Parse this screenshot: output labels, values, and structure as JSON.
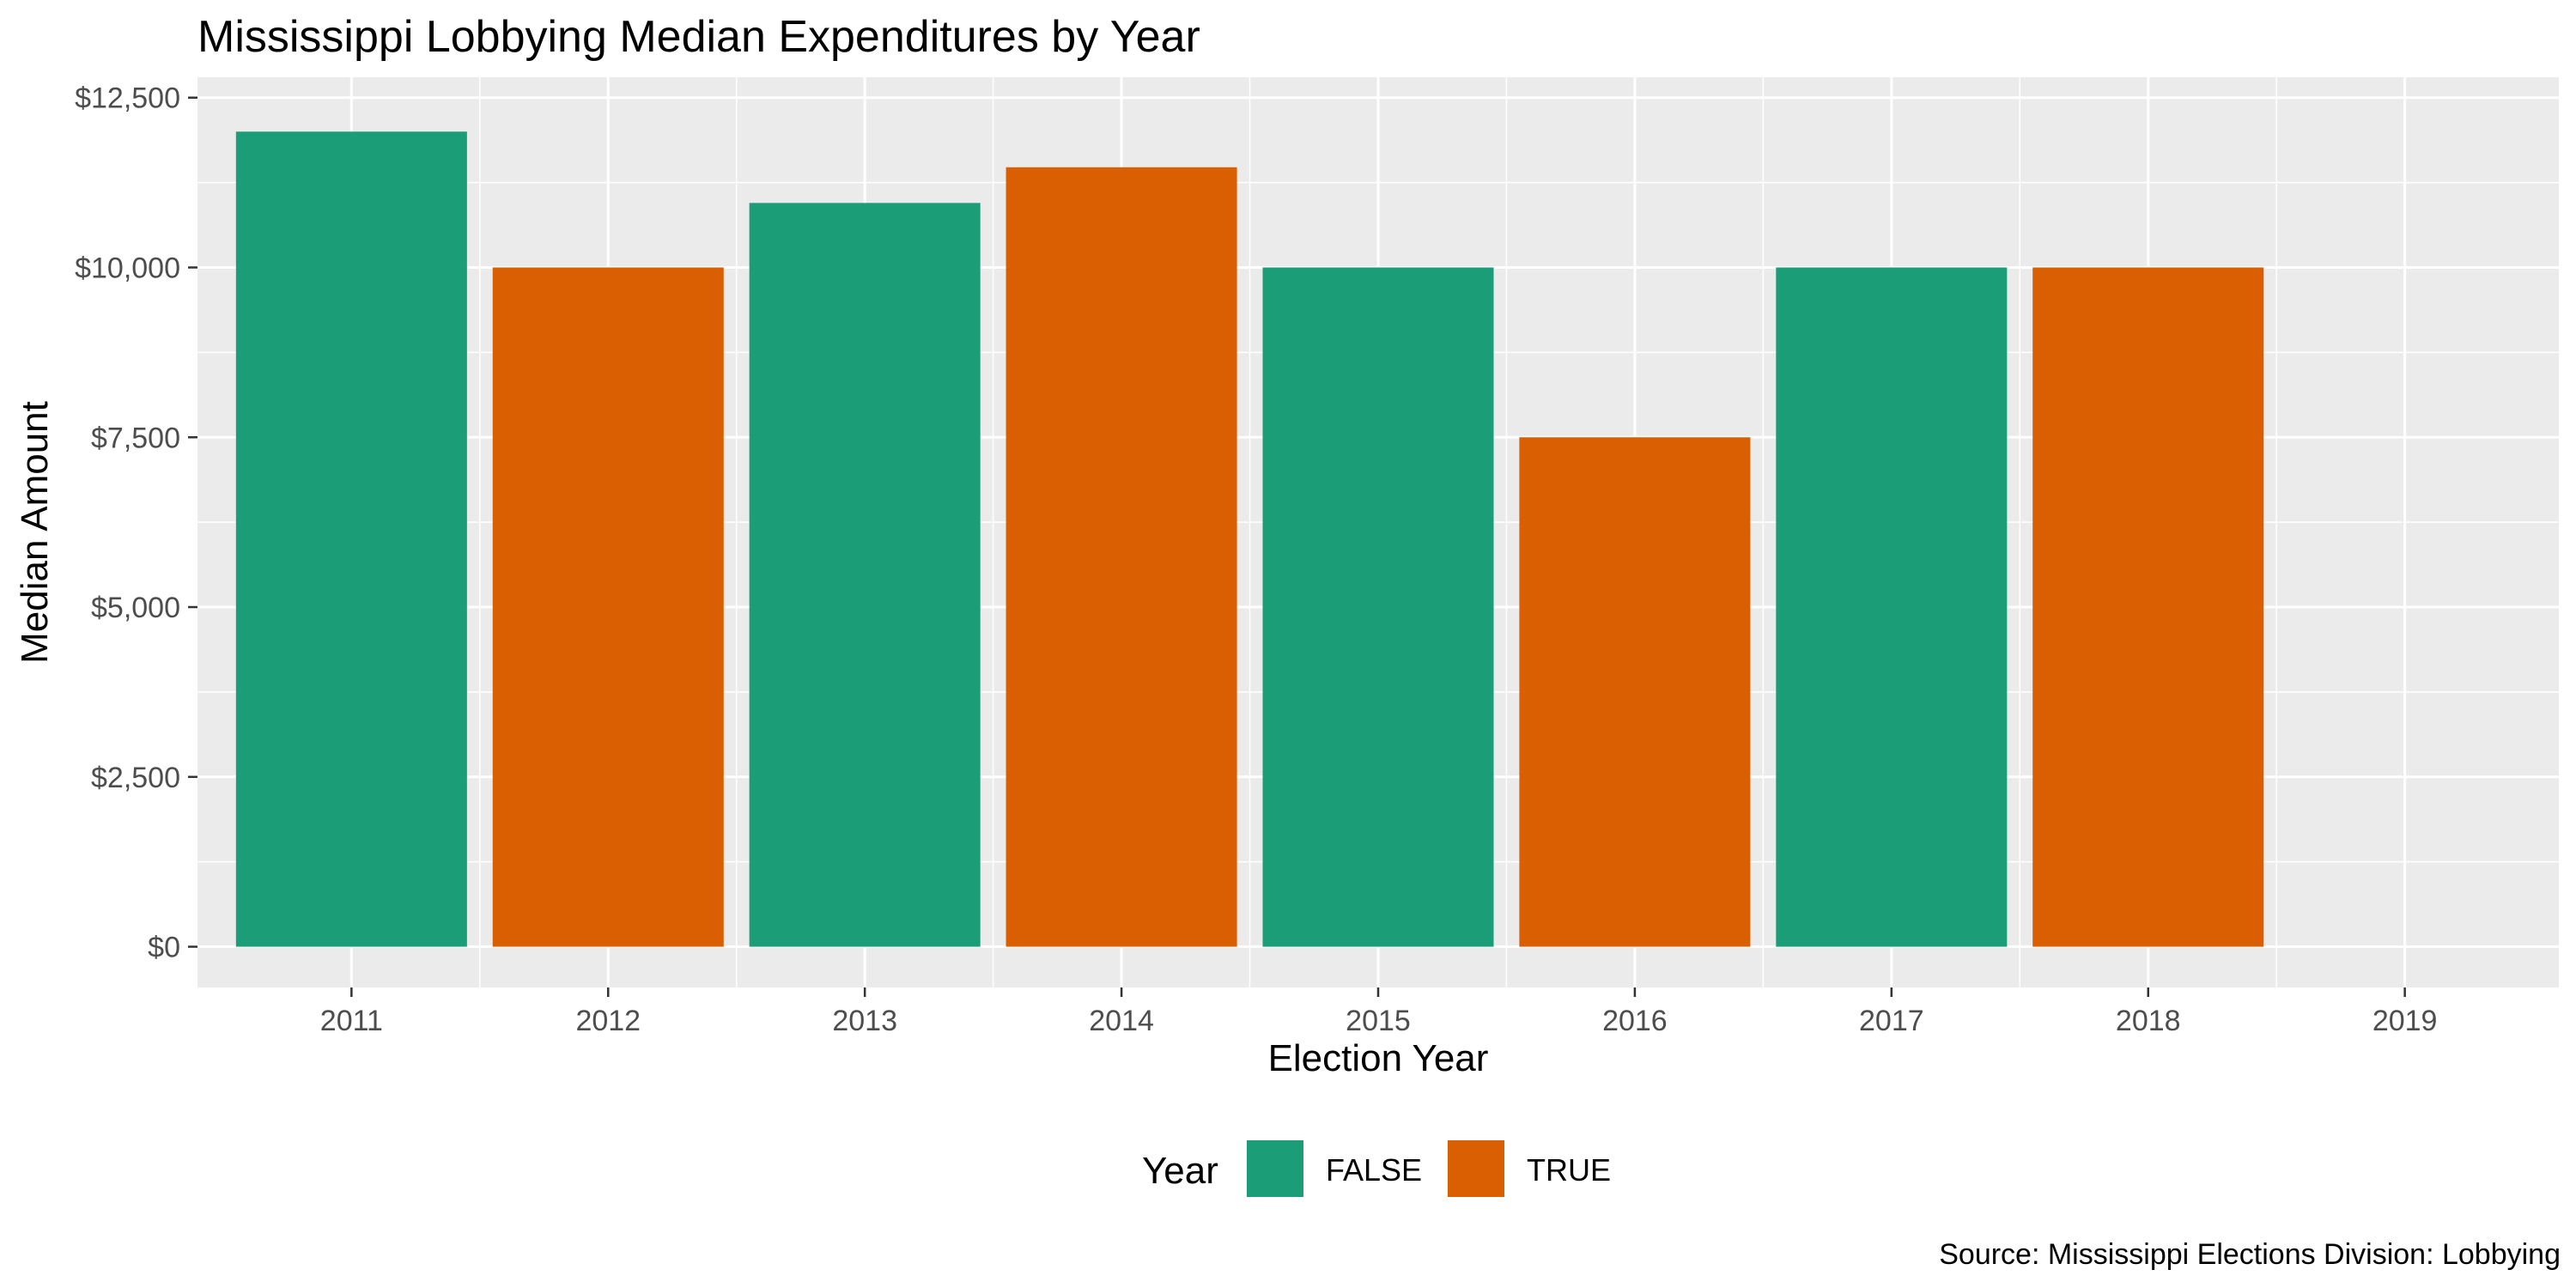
{
  "chart_data": {
    "type": "bar",
    "title": "Mississippi Lobbying Median Expenditures by Year",
    "xlabel": "Election Year",
    "ylabel": "Median Amount",
    "caption": "Source: Mississippi Elections Division: Lobbying",
    "categories": [
      "2011",
      "2012",
      "2013",
      "2014",
      "2015",
      "2016",
      "2017",
      "2018",
      "2019"
    ],
    "values": [
      12000,
      10000,
      10950,
      11475,
      10000,
      7500,
      10000,
      10000,
      null
    ],
    "fill_group": [
      "FALSE",
      "TRUE",
      "FALSE",
      "TRUE",
      "FALSE",
      "TRUE",
      "FALSE",
      "TRUE",
      null
    ],
    "y_ticks": [
      0,
      2500,
      5000,
      7500,
      10000,
      12500
    ],
    "y_tick_labels": [
      "$0",
      "$2,500",
      "$5,000",
      "$7,500",
      "$10,000",
      "$12,500"
    ],
    "ylim": [
      -600,
      12800
    ],
    "grid": true,
    "legend": {
      "title": "Year",
      "position": "bottom",
      "entries": [
        {
          "label": "FALSE",
          "color": "#1B9E77"
        },
        {
          "label": "TRUE",
          "color": "#D95F02"
        }
      ]
    },
    "colors": {
      "panel_background": "#EBEBEB",
      "grid_line": "#FFFFFF",
      "tick_label": "#4D4D4D",
      "tick_mark": "#333333"
    }
  }
}
